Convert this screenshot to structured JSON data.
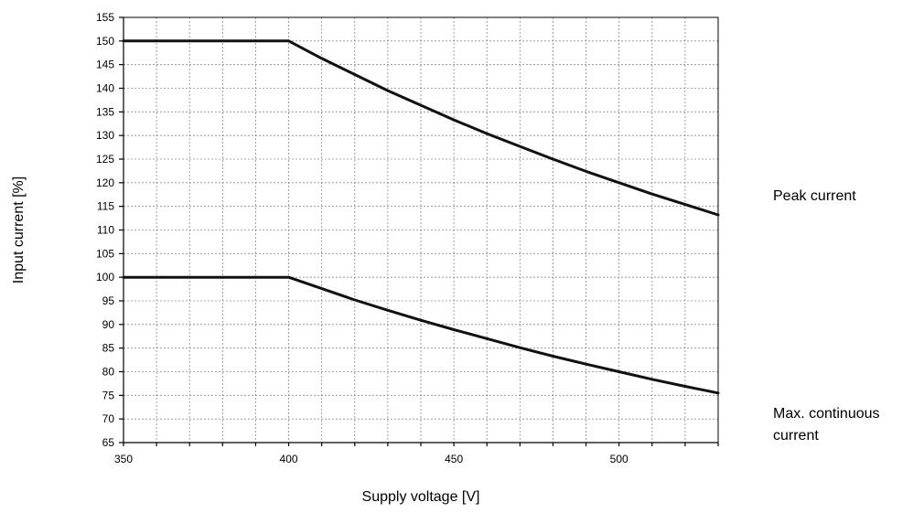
{
  "chart_data": {
    "type": "line",
    "xlabel": "Supply voltage [V]",
    "ylabel": "Input current [%]",
    "xlim": [
      350,
      530
    ],
    "ylim": [
      65,
      155
    ],
    "x_ticks": [
      350,
      400,
      450,
      500
    ],
    "x_minor_step": 10,
    "y_ticks": [
      65,
      70,
      75,
      80,
      85,
      90,
      95,
      100,
      105,
      110,
      115,
      120,
      125,
      130,
      135,
      140,
      145,
      150,
      155
    ],
    "grid": true,
    "series": [
      {
        "name": "Peak current",
        "x": [
          350,
          400,
          410,
          420,
          430,
          440,
          450,
          460,
          470,
          480,
          490,
          500,
          510,
          520,
          530
        ],
        "y": [
          150,
          150,
          146.3,
          142.9,
          139.5,
          136.4,
          133.3,
          130.4,
          127.7,
          125,
          122.4,
          120,
          117.6,
          115.4,
          113.2
        ]
      },
      {
        "name": "Max. continuous current",
        "x": [
          350,
          400,
          410,
          420,
          430,
          440,
          450,
          460,
          470,
          480,
          490,
          500,
          510,
          520,
          530
        ],
        "y": [
          100,
          100,
          97.6,
          95.2,
          93,
          90.9,
          88.9,
          87,
          85.1,
          83.3,
          81.6,
          80,
          78.4,
          76.9,
          75.5
        ]
      }
    ],
    "series_labels": [
      {
        "lines": [
          "Peak current"
        ]
      },
      {
        "lines": [
          "Max. continuous",
          "current"
        ]
      }
    ]
  }
}
